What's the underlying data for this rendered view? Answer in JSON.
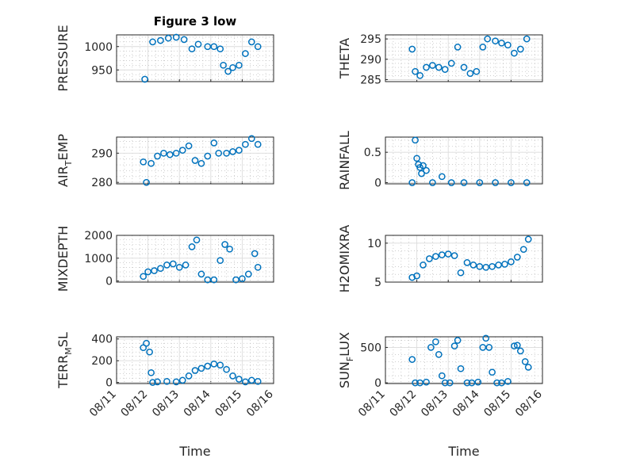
{
  "chart_data": [
    {
      "type": "scatter",
      "title": "Figure 3 low",
      "ylabel": "PRESSURE",
      "xlabel": "",
      "ylim": [
        925,
        1025
      ],
      "yticks": [
        950,
        1000
      ],
      "xlim": [
        "08/11",
        "08/16"
      ],
      "xticks": [
        "08/11",
        "08/12",
        "08/13",
        "08/14",
        "08/15",
        "08/16"
      ],
      "series": [
        {
          "x": [
            11.9,
            12.15,
            12.4,
            12.65,
            12.9,
            13.15,
            13.4,
            13.6,
            13.9,
            14.1,
            14.3,
            14.4,
            14.55,
            14.7,
            14.9,
            15.1,
            15.3,
            15.5
          ],
          "y": [
            930,
            1010,
            1013,
            1018,
            1020,
            1015,
            995,
            1005,
            1000,
            1000,
            995,
            960,
            947,
            955,
            960,
            985,
            1010,
            1000
          ]
        }
      ]
    },
    {
      "type": "scatter",
      "title": "",
      "ylabel": "THETA",
      "xlabel": "",
      "ylim": [
        284.5,
        296
      ],
      "yticks": [
        285,
        290,
        295
      ],
      "xlim": [
        "08/11",
        "08/16"
      ],
      "xticks": [
        "08/11",
        "08/12",
        "08/13",
        "08/14",
        "08/15",
        "08/16"
      ],
      "series": [
        {
          "x": [
            11.85,
            11.95,
            12.1,
            12.3,
            12.5,
            12.7,
            12.9,
            13.1,
            13.3,
            13.5,
            13.7,
            13.9,
            14.1,
            14.25,
            14.5,
            14.7,
            14.9,
            15.1,
            15.3,
            15.5
          ],
          "y": [
            292.5,
            287,
            286,
            288,
            288.5,
            288,
            287.5,
            289,
            293,
            288,
            286.5,
            287,
            293,
            295,
            294.5,
            294,
            293.5,
            291.5,
            292.5,
            295
          ]
        }
      ]
    },
    {
      "type": "scatter",
      "title": "",
      "ylabel": "AIR_TEMP",
      "xlabel": "",
      "ylim": [
        279.5,
        295.5
      ],
      "yticks": [
        280,
        290
      ],
      "xlim": [
        "08/11",
        "08/16"
      ],
      "xticks": [
        "08/11",
        "08/12",
        "08/13",
        "08/14",
        "08/15",
        "08/16"
      ],
      "series": [
        {
          "x": [
            11.85,
            11.95,
            12.1,
            12.3,
            12.5,
            12.7,
            12.9,
            13.1,
            13.3,
            13.5,
            13.7,
            13.9,
            14.1,
            14.25,
            14.5,
            14.7,
            14.9,
            15.1,
            15.3,
            15.5
          ],
          "y": [
            287,
            280,
            286.5,
            289,
            290,
            289.5,
            290,
            291,
            292.5,
            287.5,
            286.5,
            289,
            293.5,
            290,
            290,
            290.5,
            291,
            293,
            295,
            293
          ]
        }
      ]
    },
    {
      "type": "scatter",
      "title": "",
      "ylabel": "RAINFALL",
      "xlabel": "",
      "ylim": [
        -0.02,
        0.75
      ],
      "yticks": [
        0,
        0.5
      ],
      "xlim": [
        "08/11",
        "08/16"
      ],
      "xticks": [
        "08/11",
        "08/12",
        "08/13",
        "08/14",
        "08/15",
        "08/16"
      ],
      "series": [
        {
          "x": [
            11.85,
            11.95,
            12.0,
            12.05,
            12.1,
            12.15,
            12.2,
            12.3,
            12.5,
            12.8,
            13.1,
            13.5,
            14.0,
            14.5,
            15.0,
            15.5
          ],
          "y": [
            0,
            0.7,
            0.4,
            0.3,
            0.25,
            0.15,
            0.28,
            0.2,
            0,
            0.1,
            0,
            0,
            0,
            0,
            0,
            0
          ]
        }
      ]
    },
    {
      "type": "scatter",
      "title": "",
      "ylabel": "MIXDEPTH",
      "xlabel": "",
      "ylim": [
        -50,
        2000
      ],
      "yticks": [
        0,
        1000,
        2000
      ],
      "xlim": [
        "08/11",
        "08/16"
      ],
      "xticks": [
        "08/11",
        "08/12",
        "08/13",
        "08/14",
        "08/15",
        "08/16"
      ],
      "series": [
        {
          "x": [
            11.85,
            12.0,
            12.2,
            12.4,
            12.6,
            12.8,
            13.0,
            13.2,
            13.4,
            13.55,
            13.7,
            13.9,
            14.1,
            14.3,
            14.45,
            14.6,
            14.8,
            15.0,
            15.2,
            15.4,
            15.5
          ],
          "y": [
            200,
            400,
            450,
            550,
            700,
            750,
            600,
            700,
            1500,
            1800,
            300,
            50,
            50,
            900,
            1600,
            1400,
            50,
            100,
            300,
            1200,
            600
          ]
        }
      ]
    },
    {
      "type": "scatter",
      "title": "",
      "ylabel": "H2OMIXRA",
      "xlabel": "",
      "ylim": [
        5,
        11
      ],
      "yticks": [
        5,
        10
      ],
      "xlim": [
        "08/11",
        "08/16"
      ],
      "xticks": [
        "08/11",
        "08/12",
        "08/13",
        "08/14",
        "08/15",
        "08/16"
      ],
      "series": [
        {
          "x": [
            11.85,
            12.0,
            12.2,
            12.4,
            12.6,
            12.8,
            13.0,
            13.2,
            13.4,
            13.6,
            13.8,
            14.0,
            14.2,
            14.4,
            14.6,
            14.8,
            15.0,
            15.2,
            15.4,
            15.55
          ],
          "y": [
            5.6,
            5.8,
            7.2,
            8,
            8.3,
            8.5,
            8.6,
            8.4,
            6.2,
            7.5,
            7.2,
            7,
            6.9,
            7,
            7.2,
            7.3,
            7.6,
            8.2,
            9.2,
            10.5
          ]
        }
      ]
    },
    {
      "type": "scatter",
      "title": "",
      "ylabel": "TERR_MSL",
      "xlabel": "Time",
      "ylim": [
        -10,
        420
      ],
      "yticks": [
        0,
        200,
        400
      ],
      "xlim": [
        "08/11",
        "08/16"
      ],
      "xticks": [
        "08/11",
        "08/12",
        "08/13",
        "08/14",
        "08/15",
        "08/16"
      ],
      "series": [
        {
          "x": [
            11.85,
            11.95,
            12.05,
            12.1,
            12.15,
            12.3,
            12.6,
            12.9,
            13.1,
            13.3,
            13.5,
            13.7,
            13.9,
            14.1,
            14.3,
            14.5,
            14.7,
            14.9,
            15.1,
            15.3,
            15.5
          ],
          "y": [
            320,
            360,
            280,
            90,
            0,
            5,
            10,
            5,
            20,
            60,
            110,
            130,
            150,
            170,
            160,
            120,
            60,
            30,
            5,
            20,
            10
          ]
        }
      ]
    },
    {
      "type": "scatter",
      "title": "",
      "ylabel": "SUN_FLUX",
      "xlabel": "Time",
      "ylim": [
        -10,
        650
      ],
      "yticks": [
        0,
        500
      ],
      "xlim": [
        "08/11",
        "08/16"
      ],
      "xticks": [
        "08/11",
        "08/12",
        "08/13",
        "08/14",
        "08/15",
        "08/16"
      ],
      "series": [
        {
          "x": [
            11.85,
            11.95,
            12.1,
            12.3,
            12.45,
            12.6,
            12.7,
            12.8,
            12.9,
            13.05,
            13.2,
            13.3,
            13.4,
            13.6,
            13.75,
            13.95,
            14.1,
            14.2,
            14.3,
            14.4,
            14.55,
            14.7,
            14.9,
            15.1,
            15.2,
            15.3,
            15.45,
            15.55
          ],
          "y": [
            330,
            0,
            0,
            10,
            500,
            580,
            400,
            100,
            0,
            0,
            520,
            600,
            200,
            0,
            0,
            10,
            500,
            630,
            500,
            150,
            0,
            0,
            20,
            520,
            530,
            450,
            300,
            220
          ]
        }
      ]
    }
  ]
}
